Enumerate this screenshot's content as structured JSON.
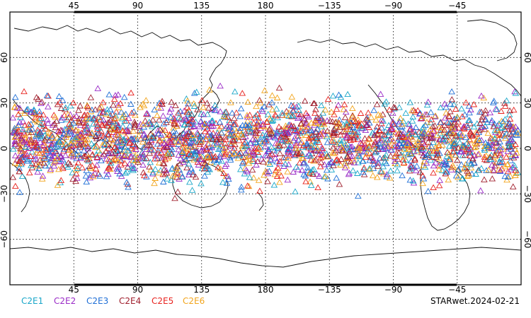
{
  "map": {
    "lon_ticks": [
      "45",
      "90",
      "135",
      "180",
      "−135",
      "−90",
      "−45"
    ],
    "lat_ticks": [
      "60",
      "30",
      "0",
      "−30",
      "−60"
    ],
    "lon_range": [
      0,
      360
    ],
    "lat_range": [
      -90,
      90
    ],
    "central_longitude": 180,
    "gridlines": "dotted",
    "land_style": "coastline outline only"
  },
  "legend": {
    "items": [
      {
        "label": "C2E1",
        "color": "#1aa7c9"
      },
      {
        "label": "C2E2",
        "color": "#9a2bc7"
      },
      {
        "label": "C2E3",
        "color": "#1f6fd6"
      },
      {
        "label": "C2E4",
        "color": "#a0202e"
      },
      {
        "label": "C2E5",
        "color": "#e8231f"
      },
      {
        "label": "C2E6",
        "color": "#f2a51d"
      }
    ]
  },
  "stamp": "STARwet.2024-02-21",
  "observations": {
    "marker": "open triangle",
    "lat_band": [
      -35,
      45
    ],
    "density": "dense global band",
    "note_colors_by_satellite": true
  }
}
